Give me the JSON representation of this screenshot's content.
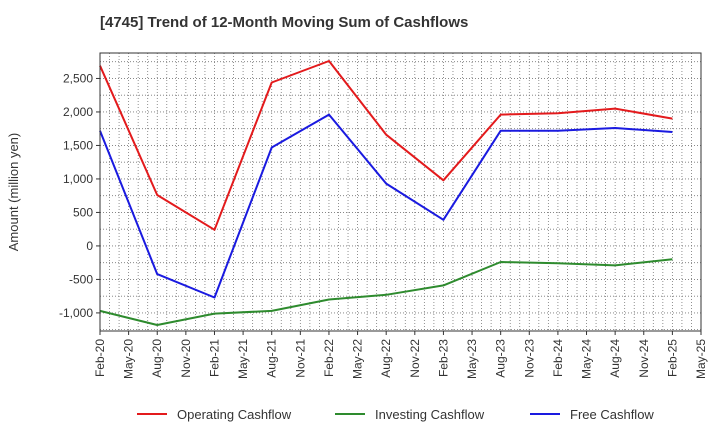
{
  "chart_data": {
    "type": "line",
    "title": "[4745]  Trend of 12-Month Moving Sum of Cashflows",
    "xlabel": "",
    "ylabel": "Amount (million yen)",
    "x_tick_labels": [
      "Feb-20",
      "May-20",
      "Aug-20",
      "Nov-20",
      "Feb-21",
      "May-21",
      "Aug-21",
      "Nov-21",
      "Feb-22",
      "May-22",
      "Aug-22",
      "Nov-22",
      "Feb-23",
      "May-23",
      "Aug-23",
      "Nov-23",
      "Feb-24",
      "May-24",
      "Aug-24",
      "Nov-24",
      "Feb-25",
      "May-25"
    ],
    "y_ticks": [
      -1000,
      -500,
      0,
      500,
      1000,
      1500,
      2000,
      2500
    ],
    "y_tick_labels": [
      "-1,000",
      "-500",
      "0",
      "500",
      "1,000",
      "1,500",
      "2,000",
      "2,500"
    ],
    "ylim": [
      -1270,
      2880
    ],
    "grid": true,
    "legend_position": "bottom",
    "series": [
      {
        "name": "Operating Cashflow",
        "color": "#e31a1c",
        "points": [
          [
            "Feb-20",
            2690
          ],
          [
            "Aug-20",
            760
          ],
          [
            "Feb-21",
            240
          ],
          [
            "Aug-21",
            2440
          ],
          [
            "Feb-22",
            2760
          ],
          [
            "Aug-22",
            1660
          ],
          [
            "Feb-23",
            980
          ],
          [
            "Aug-23",
            1960
          ],
          [
            "Feb-24",
            1980
          ],
          [
            "Aug-24",
            2050
          ],
          [
            "Feb-25",
            1900
          ]
        ]
      },
      {
        "name": "Investing Cashflow",
        "color": "#2e8b2e",
        "points": [
          [
            "Feb-20",
            -970
          ],
          [
            "Aug-20",
            -1180
          ],
          [
            "Feb-21",
            -1010
          ],
          [
            "Aug-21",
            -970
          ],
          [
            "Feb-22",
            -800
          ],
          [
            "Aug-22",
            -730
          ],
          [
            "Feb-23",
            -590
          ],
          [
            "Aug-23",
            -240
          ],
          [
            "Feb-24",
            -260
          ],
          [
            "Aug-24",
            -290
          ],
          [
            "Feb-25",
            -200
          ]
        ]
      },
      {
        "name": "Free Cashflow",
        "color": "#1a1ae0",
        "points": [
          [
            "Feb-20",
            1720
          ],
          [
            "Aug-20",
            -420
          ],
          [
            "Feb-21",
            -770
          ],
          [
            "Aug-21",
            1470
          ],
          [
            "Feb-22",
            1960
          ],
          [
            "Aug-22",
            930
          ],
          [
            "Feb-23",
            390
          ],
          [
            "Aug-23",
            1720
          ],
          [
            "Feb-24",
            1720
          ],
          [
            "Aug-24",
            1760
          ],
          [
            "Feb-25",
            1700
          ]
        ]
      }
    ]
  }
}
